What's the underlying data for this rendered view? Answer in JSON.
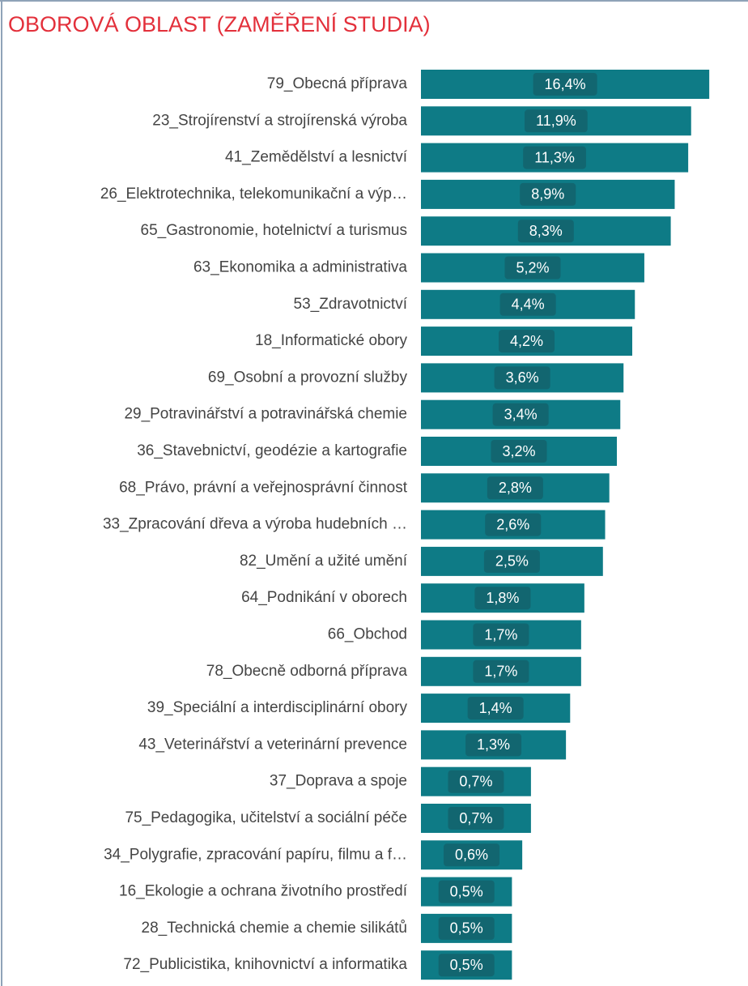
{
  "chart_data": {
    "type": "barh",
    "title": "OBOROVÁ OBLAST (ZAMĚŘENÍ STUDIA)",
    "categories": [
      "79_Obecná příprava",
      "23_Strojírenství a strojírenská výroba",
      "41_Zemědělství a lesnictví",
      "26_Elektrotechnika, telekomunikační a výp…",
      "65_Gastronomie, hotelnictví a turismus",
      "63_Ekonomika a administrativa",
      "53_Zdravotnictví",
      "18_Informatické obory",
      "69_Osobní a provozní služby",
      "29_Potravinářství a potravinářská chemie",
      "36_Stavebnictví, geodézie a kartografie",
      "68_Právo, právní a veřejnosprávní činnost",
      "33_Zpracování dřeva a výroba hudebních …",
      "82_Umění a užité umění",
      "64_Podnikání v oborech",
      "66_Obchod",
      "78_Obecně odborná příprava",
      "39_Speciální a interdisciplinární obory",
      "43_Veterinářství a veterinární prevence",
      "37_Doprava a spoje",
      "75_Pedagogika, učitelství a sociální péče",
      "34_Polygrafie, zpracování papíru, filmu a f…",
      "16_Ekologie a ochrana životního prostředí",
      "28_Technická chemie a chemie silikátů",
      "72_Publicistika, knihovnictví a informatika"
    ],
    "values": [
      16.4,
      11.9,
      11.3,
      8.9,
      8.3,
      5.2,
      4.4,
      4.2,
      3.6,
      3.4,
      3.2,
      2.8,
      2.6,
      2.5,
      1.8,
      1.7,
      1.7,
      1.4,
      1.3,
      0.7,
      0.7,
      0.6,
      0.5,
      0.5,
      0.5
    ],
    "value_labels": [
      "16,4%",
      "11,9%",
      "11,3%",
      "8,9%",
      "8,3%",
      "5,2%",
      "4,4%",
      "4,2%",
      "3,6%",
      "3,4%",
      "3,2%",
      "2,8%",
      "2,6%",
      "2,5%",
      "1,8%",
      "1,7%",
      "1,7%",
      "1,4%",
      "1,3%",
      "0,7%",
      "0,7%",
      "0,6%",
      "0,5%",
      "0,5%",
      "0,5%"
    ],
    "color": "#0e7b86",
    "log_scale": true,
    "xlim": [
      0.1,
      20
    ]
  }
}
